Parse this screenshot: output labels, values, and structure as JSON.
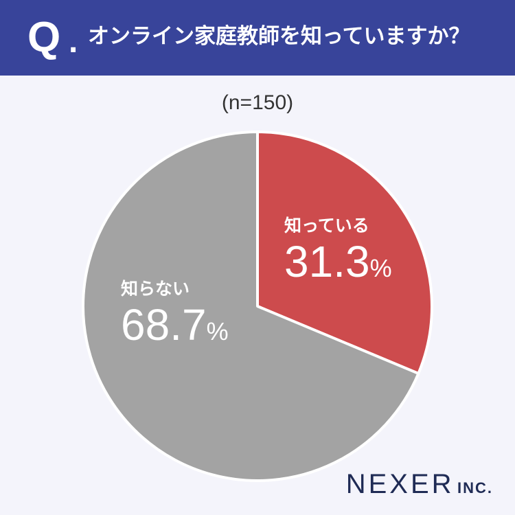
{
  "header": {
    "q_mark": "Q",
    "q_dot": ".",
    "question": "オンライン家庭教師を知っていますか？"
  },
  "sample_label": "(n=150)",
  "logo": {
    "name": "NEXER",
    "suffix": "INC."
  },
  "colors": {
    "header_bg": "#38449a",
    "known": "#cd4b4d",
    "unknown": "#a3a3a3",
    "background": "#f4f4fb"
  },
  "chart_data": {
    "type": "pie",
    "title": "",
    "start": "12 o'clock, clockwise",
    "slices": [
      {
        "label": "知っている",
        "value": 31.3,
        "value_text": "31.3",
        "unit": "%",
        "color": "#cd4b4d"
      },
      {
        "label": "知らない",
        "value": 68.7,
        "value_text": "68.7",
        "unit": "%",
        "color": "#a3a3a3"
      }
    ]
  }
}
